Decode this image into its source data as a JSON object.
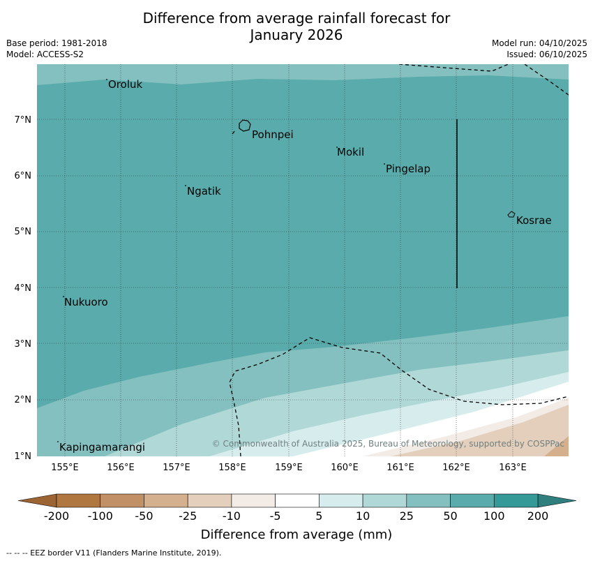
{
  "title_line1": "Difference from average rainfall forecast for",
  "title_line2": "January 2026",
  "base_period": "Base period: 1981-2018",
  "model": "Model: ACCESS-S2",
  "model_run": "Model run: 04/10/2025",
  "issued": "Issued: 06/10/2025",
  "places": {
    "oroluk": "Oroluk",
    "pohnpei": "Pohnpei",
    "mokil": "Mokil",
    "pingelap": "Pingelap",
    "ngatik": "Ngatik",
    "kosrae": "Kosrae",
    "nukuoro": "Nukuoro",
    "kapingamarangi": "Kapingamarangi"
  },
  "lat_ticks": [
    "1°N",
    "2°N",
    "3°N",
    "4°N",
    "5°N",
    "6°N",
    "7°N"
  ],
  "lon_ticks": [
    "155°E",
    "156°E",
    "157°E",
    "158°E",
    "159°E",
    "160°E",
    "161°E",
    "162°E",
    "163°E"
  ],
  "copyright": "© Commonwealth of Australia 2025, Bureau of Meteorology, supported by COSPPac",
  "colorbar": {
    "labels": [
      "-200",
      "-100",
      "-50",
      "-25",
      "-10",
      "-5",
      "5",
      "10",
      "25",
      "50",
      "100",
      "200"
    ],
    "colors": [
      "#b07840",
      "#c19066",
      "#d4b08e",
      "#e3cfbb",
      "#f2ebe6",
      "#ffffff",
      "#d7ecec",
      "#afd8d7",
      "#84c0bf",
      "#5aabab",
      "#359998"
    ],
    "under_color": "#9b6432",
    "over_color": "#2e7f7e",
    "title": "Difference from average (mm)"
  },
  "footnote": "-- -- -- EEZ border V11 (Flanders Marine Institute, 2019)."
}
